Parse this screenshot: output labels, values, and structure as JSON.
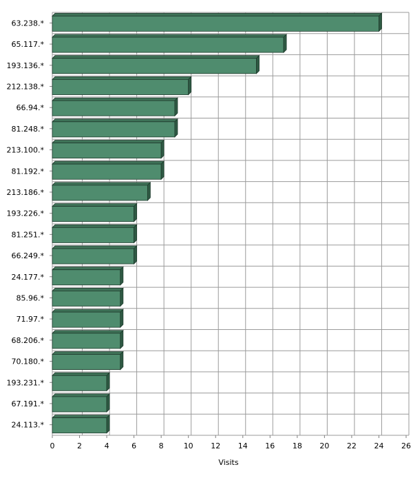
{
  "chart_data": {
    "type": "bar",
    "orientation": "horizontal",
    "style": "3d",
    "title": "",
    "xlabel": "Visits",
    "ylabel": "",
    "xlim": [
      0,
      26
    ],
    "x_ticks": [
      0,
      2,
      4,
      6,
      8,
      10,
      12,
      14,
      16,
      18,
      20,
      22,
      24,
      26
    ],
    "grid": true,
    "bar_color": "#4f8c6e",
    "categories": [
      "63.238.*",
      "65.117.*",
      "193.136.*",
      "212.138.*",
      "66.94.*",
      "81.248.*",
      "213.100.*",
      "81.192.*",
      "213.186.*",
      "193.226.*",
      "81.251.*",
      "66.249.*",
      "24.177.*",
      "85.96.*",
      "71.97.*",
      "68.206.*",
      "70.180.*",
      "193.231.*",
      "67.191.*",
      "24.113.*"
    ],
    "values": [
      24,
      17,
      15,
      10,
      9,
      9,
      8,
      8,
      7,
      6,
      6,
      6,
      5,
      5,
      5,
      5,
      5,
      4,
      4,
      4
    ]
  }
}
